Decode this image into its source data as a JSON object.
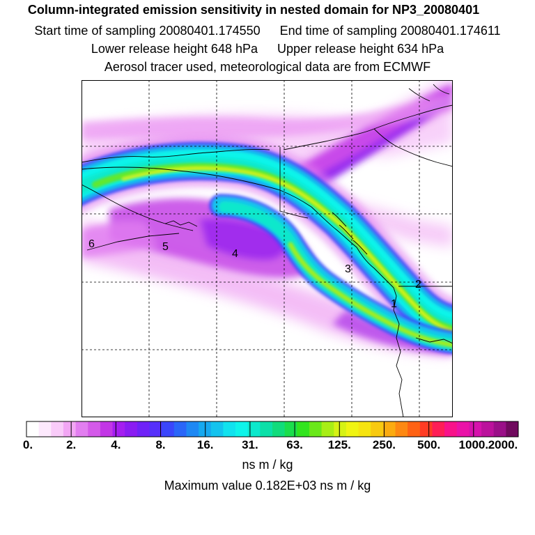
{
  "header": {
    "title": "Column-integrated emission sensitivity in nested domain for NP3_20080401",
    "start_time": "Start time of sampling 20080401.174550",
    "end_time": "End time of sampling 20080401.174611",
    "lower_height": "Lower release height  648 hPa",
    "upper_height": "Upper release height  634 hPa",
    "tracer_info": "Aerosol tracer used, meteorological data are from ECMWF"
  },
  "map": {
    "region_labels": [
      "6",
      "5",
      "4",
      "3",
      "2",
      "1"
    ]
  },
  "colorbar": {
    "colors": [
      "#ffffff",
      "#fde9fd",
      "#f9cbf9",
      "#f2a6f4",
      "#e27ef0",
      "#d45ae9",
      "#c236e6",
      "#a41ef0",
      "#8a1cf2",
      "#6f22f7",
      "#5630fa",
      "#3a46fb",
      "#2a66f8",
      "#1e88f3",
      "#16a8ef",
      "#14c3ee",
      "#11e2ee",
      "#0ef4ea",
      "#0be8cc",
      "#0be0a8",
      "#10dc7c",
      "#1ade4c",
      "#32e41e",
      "#6ae81a",
      "#a8ee16",
      "#d6f214",
      "#f0f412",
      "#f6e410",
      "#f8ca10",
      "#fbab10",
      "#fd8812",
      "#fe6214",
      "#ff3c24",
      "#fe1e56",
      "#f8128a",
      "#ea12a8",
      "#d612ac",
      "#bb129c",
      "#9a1088",
      "#700a5e"
    ],
    "tick_labels": [
      "0.",
      "2.",
      "4.",
      "8.",
      "16.",
      "31.",
      "63.",
      "125.",
      "250.",
      "500.",
      "1000.",
      "2000."
    ],
    "units": "ns m / kg",
    "max_value": "Maximum value  0.182E+03 ns m / kg"
  }
}
